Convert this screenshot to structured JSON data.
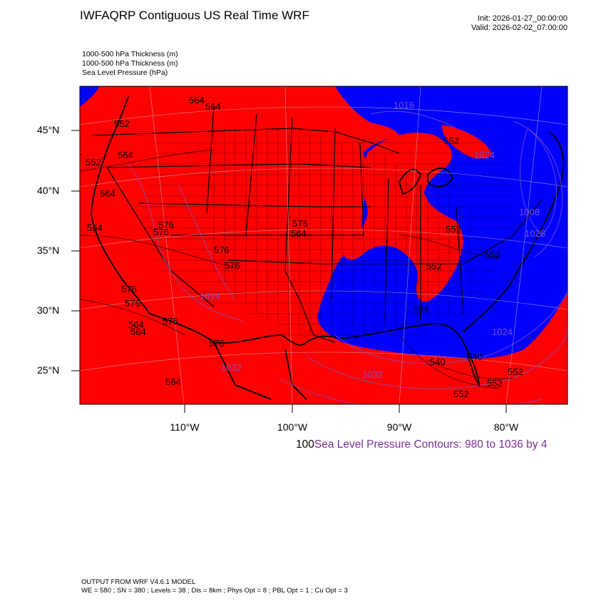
{
  "header": {
    "title": "IWFAQRP Contiguous US Real Time WRF",
    "init": "Init: 2026-01-27_00:00:00",
    "valid": "Valid: 2026-02-02_07:00:00"
  },
  "fields": [
    "1000-500 hPa Thickness   (m)",
    "1000-500 hPa Thickness   (m)",
    "Sea Level Pressure   (hPa)"
  ],
  "map": {
    "lat_labels": [
      "45°N",
      "40°N",
      "35°N",
      "30°N",
      "25°N"
    ],
    "lon_labels": [
      "110°W",
      "100°W",
      "90°W",
      "80°W"
    ],
    "colors": {
      "warm": "#ff0000",
      "cold": "#0000ff",
      "slp_contour": "#7a4fbf",
      "state_line": "#000000"
    },
    "thickness_labels": [
      "564",
      "564",
      "552",
      "564",
      "552",
      "564",
      "564",
      "576",
      "576",
      "576",
      "576",
      "576",
      "576",
      "576",
      "564",
      "564",
      "576",
      "576",
      "564",
      "564",
      "552",
      "540",
      "552",
      "552",
      "564",
      "552",
      "540",
      "552",
      "552",
      "552"
    ],
    "pressure_labels": [
      "1016",
      "1024",
      "1032",
      "1024",
      "1008",
      "1028",
      "1024",
      "1032"
    ]
  },
  "contours_note": {
    "prefix": "100",
    "text": "Sea Level Pressure Contours: 980 to 1036 by 4"
  },
  "footer": {
    "line1": "OUTPUT FROM WRF V4.6.1 MODEL",
    "line2": "WE = 580 ; SN = 380 ; Levels = 38 ; Dis = 8km ; Phys Opt = 8 ; PBL Opt = 1 ; Cu Opt = 3"
  }
}
